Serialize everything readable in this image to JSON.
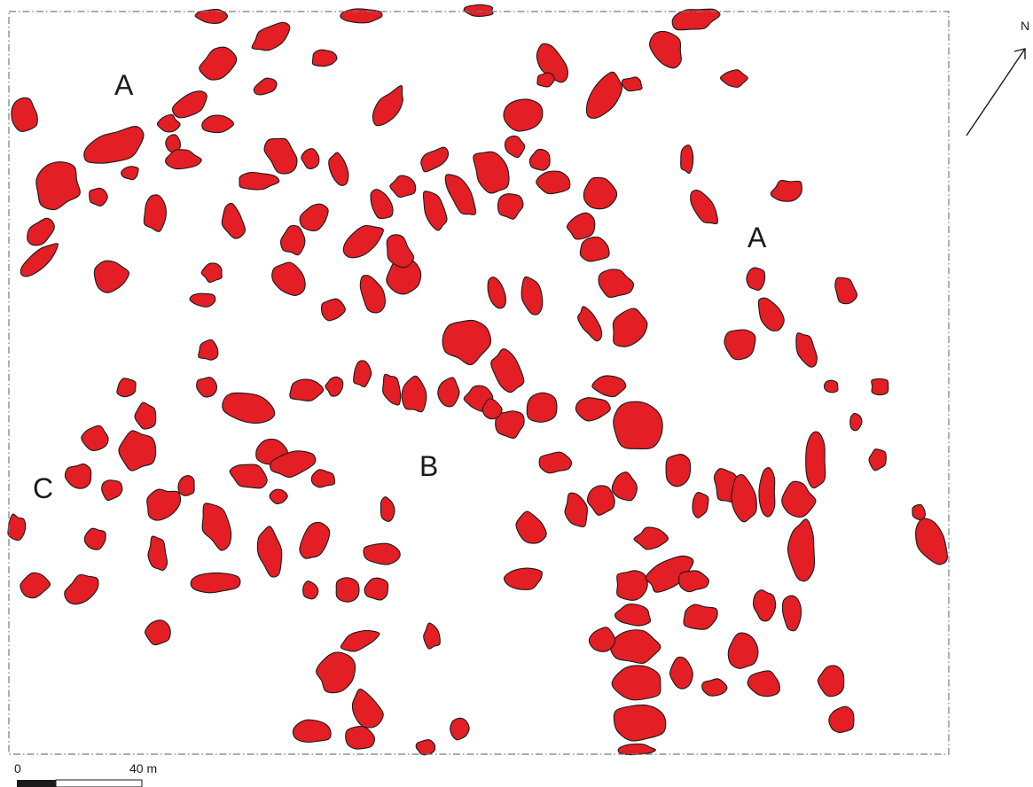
{
  "colors": {
    "feature_fill": "#e31e24",
    "outline": "#1a1a1a",
    "frame": "#7a7a7a",
    "background": "#ffffff"
  },
  "labels": {
    "a_upper": "A",
    "a_right": "A",
    "b": "B",
    "c": "C"
  },
  "north_arrow": {
    "label": "N",
    "icon": "north-arrow-icon"
  },
  "scale_bar": {
    "start_label": "0",
    "end_label": "40 m"
  }
}
